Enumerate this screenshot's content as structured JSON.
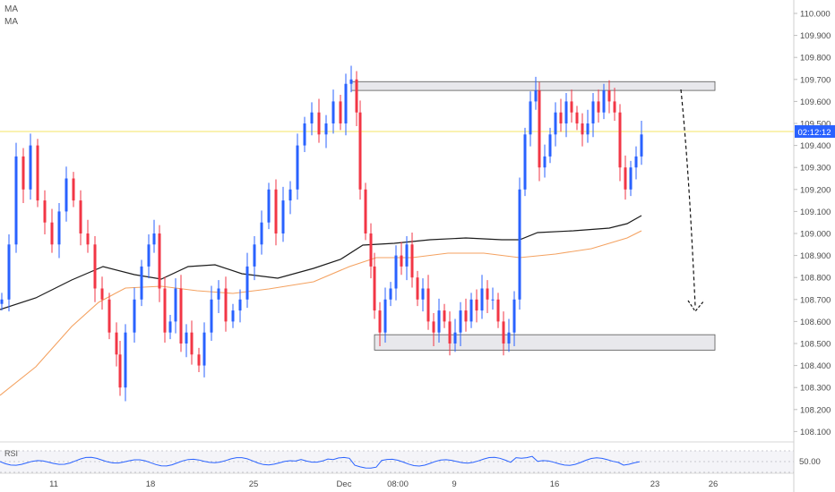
{
  "indicators": {
    "ma1": "MA",
    "ma2": "MA",
    "rsi": "RSI"
  },
  "current_price_label": "02:12:12",
  "colors": {
    "up": "#2962ff",
    "down": "#f23645",
    "ma_long": "#1c1c1c",
    "ma_short": "#f4a261",
    "zone_fill": "#e8e8ec",
    "zone_stroke": "#555555",
    "price_line": "#f5e663",
    "price_tag": "#2962ff",
    "rsi": "#2962ff"
  },
  "chart_data": {
    "type": "candlestick",
    "y_axis": {
      "ticks": [
        "110.000",
        "109.900",
        "109.800",
        "109.700",
        "109.600",
        "109.500",
        "109.400",
        "109.300",
        "109.200",
        "109.100",
        "109.000",
        "108.900",
        "108.800",
        "108.700",
        "108.600",
        "108.500",
        "108.400",
        "108.300",
        "108.200",
        "108.100"
      ],
      "range": [
        108.05,
        110.05
      ]
    },
    "x_axis": {
      "ticks": [
        "11",
        "18",
        "25",
        "Dec",
        "08:00",
        "9",
        "16",
        "23",
        "26"
      ]
    },
    "current_price": 109.45,
    "resistance_zone": [
      109.65,
      109.69
    ],
    "support_zone": [
      108.47,
      108.54
    ],
    "projection": {
      "from": 109.65,
      "to": 108.63,
      "style": "dashed-arrow-down"
    },
    "rsi": {
      "ticks": [
        "50.00"
      ],
      "level": 50
    }
  }
}
